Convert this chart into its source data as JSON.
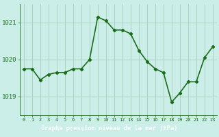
{
  "x": [
    0,
    1,
    2,
    3,
    4,
    5,
    6,
    7,
    8,
    9,
    10,
    11,
    12,
    13,
    14,
    15,
    16,
    17,
    18,
    19,
    20,
    21,
    22,
    23
  ],
  "y": [
    1019.75,
    1019.75,
    1019.45,
    1019.6,
    1019.65,
    1019.65,
    1019.75,
    1019.75,
    1020.0,
    1021.15,
    1021.05,
    1020.8,
    1020.8,
    1020.7,
    1020.25,
    1019.95,
    1019.75,
    1019.65,
    1018.85,
    1019.1,
    1019.4,
    1019.4,
    1020.05,
    1020.35
  ],
  "line_color": "#1a6e1a",
  "marker": "D",
  "marker_size": 2.2,
  "bg_color": "#cceee8",
  "grid_color": "#aaccbb",
  "xlabel": "Graphe pression niveau de la mer (hPa)",
  "tick_color": "#1a6e1a",
  "ylim": [
    1018.5,
    1021.5
  ],
  "yticks": [
    1019,
    1020,
    1021
  ],
  "xticks": [
    0,
    1,
    2,
    3,
    4,
    5,
    6,
    7,
    8,
    9,
    10,
    11,
    12,
    13,
    14,
    15,
    16,
    17,
    18,
    19,
    20,
    21,
    22,
    23
  ],
  "linewidth": 1.2,
  "bottom_bar_color": "#2d7a2d",
  "label_text_color": "#ffffff",
  "xfontsize": 5.0,
  "yfontsize": 6.5,
  "label_fontsize": 6.2
}
